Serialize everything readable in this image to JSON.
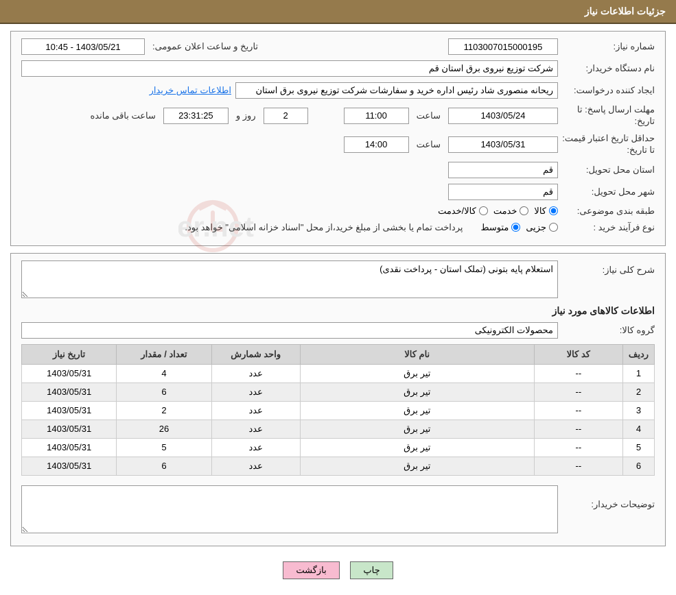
{
  "header": {
    "title": "جزئیات اطلاعات نیاز"
  },
  "fields": {
    "need_no_label": "شماره نیاز:",
    "need_no": "1103007015000195",
    "announce_label": "تاریخ و ساعت اعلان عمومی:",
    "announce_value": "1403/05/21 - 10:45",
    "buyer_label": "نام دستگاه خریدار:",
    "buyer_value": "شرکت توزیع نیروی برق استان قم",
    "requester_label": "ایجاد کننده درخواست:",
    "requester_value": "ریحانه منصوری شاد رئیس اداره خرید و سفارشات شرکت توزیع نیروی برق استان",
    "contact_link": "اطلاعات تماس خریدار",
    "deadline_label": "مهلت ارسال پاسخ: تا تاریخ:",
    "deadline_date": "1403/05/24",
    "time_label": "ساعت",
    "deadline_time": "11:00",
    "days_remaining": "2",
    "and_label": "روز و",
    "hours_remaining": "23:31:25",
    "remaining_label": "ساعت باقی مانده",
    "min_valid_label": "حداقل تاریخ اعتبار قیمت: تا تاریخ:",
    "min_valid_date": "1403/05/31",
    "min_valid_time": "14:00",
    "province_label": "استان محل تحویل:",
    "province": "قم",
    "city_label": "شهر محل تحویل:",
    "city": "قم",
    "cat_label": "طبقه بندی موضوعی:",
    "cat_goods": "کالا",
    "cat_service": "خدمت",
    "cat_goods_service": "کالا/خدمت",
    "proc_label": "نوع فرآیند خرید :",
    "proc_minor": "جزیی",
    "proc_medium": "متوسط",
    "proc_note": "پرداخت تمام یا بخشی از مبلغ خرید،از محل \"اسناد خزانه اسلامی\" خواهد بود."
  },
  "desc": {
    "label": "شرح کلی نیاز:",
    "value": "استعلام پایه بتونی (تملک استان - پرداخت نقدی)"
  },
  "items_section": "اطلاعات کالاهای مورد نیاز",
  "group": {
    "label": "گروه کالا:",
    "value": "محصولات الکترونیکی"
  },
  "table": {
    "columns": {
      "row": "ردیف",
      "code": "کد کالا",
      "name": "نام کالا",
      "unit": "واحد شمارش",
      "qty": "تعداد / مقدار",
      "date": "تاریخ نیاز"
    },
    "col_widths": {
      "row": "5%",
      "code": "14%",
      "name": "37%",
      "unit": "14%",
      "qty": "15%",
      "date": "15%"
    },
    "rows": [
      {
        "row": "1",
        "code": "--",
        "name": "تیر برق",
        "unit": "عدد",
        "qty": "4",
        "date": "1403/05/31"
      },
      {
        "row": "2",
        "code": "--",
        "name": "تیر برق",
        "unit": "عدد",
        "qty": "6",
        "date": "1403/05/31"
      },
      {
        "row": "3",
        "code": "--",
        "name": "تیر برق",
        "unit": "عدد",
        "qty": "2",
        "date": "1403/05/31"
      },
      {
        "row": "4",
        "code": "--",
        "name": "تیر برق",
        "unit": "عدد",
        "qty": "26",
        "date": "1403/05/31"
      },
      {
        "row": "5",
        "code": "--",
        "name": "تیر برق",
        "unit": "عدد",
        "qty": "5",
        "date": "1403/05/31"
      },
      {
        "row": "6",
        "code": "--",
        "name": "تیر برق",
        "unit": "عدد",
        "qty": "6",
        "date": "1403/05/31"
      }
    ]
  },
  "buyer_notes_label": "توضیحات خریدار:",
  "buttons": {
    "print": "چاپ",
    "back": "بازگشت"
  },
  "colors": {
    "header_bg": "#957a4c",
    "header_text": "#ffffff",
    "border": "#999999",
    "table_header_bg": "#d8d8d8",
    "table_stripe": "#eeeeee",
    "btn_print_bg": "#c8e6c9",
    "btn_back_bg": "#f8bbd0",
    "link_color": "#1a73e8"
  }
}
